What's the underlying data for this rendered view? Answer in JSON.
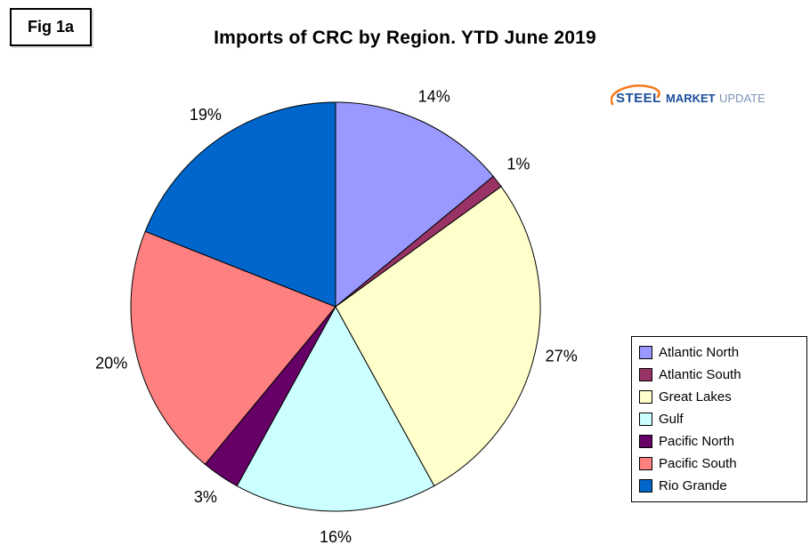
{
  "figure_label": "Fig 1a",
  "title": "Imports of CRC by Region. YTD June 2019",
  "logo": {
    "part1": "STEEL",
    "part2": "MARKET",
    "part3": "UPDATE",
    "accent_color": "#f47b20",
    "text_color": "#1b4e9b",
    "light_text_color": "#7c93b5"
  },
  "chart_data": {
    "type": "pie",
    "title": "Imports of CRC by Region. YTD June 2019",
    "categories": [
      "Atlantic North",
      "Atlantic South",
      "Great Lakes",
      "Gulf",
      "Pacific North",
      "Pacific South",
      "Rio Grande"
    ],
    "values": [
      14,
      1,
      27,
      16,
      3,
      20,
      19
    ],
    "labels": [
      "14%",
      "1%",
      "27%",
      "16%",
      "3%",
      "20%",
      "19%"
    ],
    "unit": "%",
    "colors": [
      "#9999FF",
      "#993366",
      "#FFFFCC",
      "#CCFFFF",
      "#660066",
      "#FF8080",
      "#0066CC"
    ],
    "start_angle_deg": -90,
    "direction": "clockwise",
    "legend_position": "right",
    "slice_stroke": "#000000"
  }
}
